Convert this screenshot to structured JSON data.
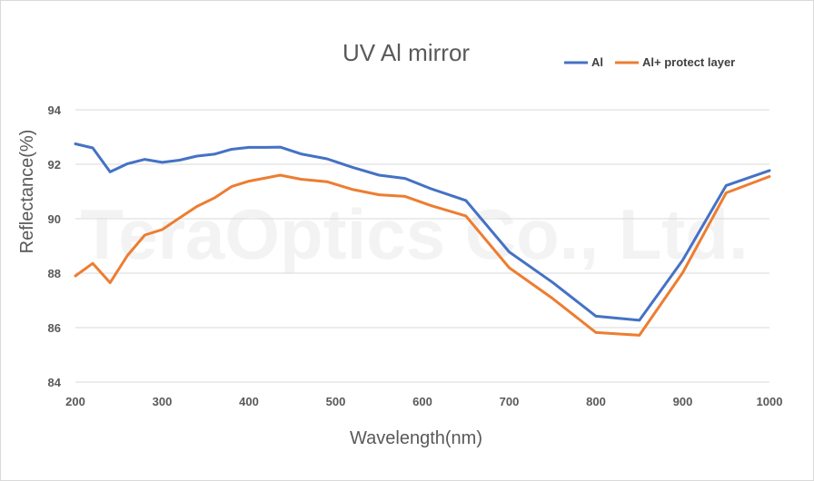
{
  "chart_data": {
    "type": "line",
    "title": "UV Al mirror",
    "xlabel": "Wavelength(nm)",
    "ylabel": "Reflectance(%)",
    "xlim": [
      200,
      1000
    ],
    "ylim": [
      84,
      94
    ],
    "xticks": [
      200,
      300,
      400,
      500,
      600,
      700,
      800,
      900,
      1000
    ],
    "yticks": [
      84,
      86,
      88,
      90,
      92,
      94
    ],
    "grid": true,
    "legend_position": "top-right",
    "watermark": "TeraOptics Co., Ltd.",
    "series": [
      {
        "name": "Al",
        "color": "#4472c4",
        "x": [
          200,
          220,
          240,
          260,
          280,
          300,
          320,
          340,
          360,
          380,
          400,
          420,
          436,
          460,
          490,
          520,
          550,
          580,
          610,
          650,
          700,
          750,
          800,
          850,
          900,
          950,
          1000
        ],
        "y": [
          92.75,
          92.6,
          91.72,
          92.02,
          92.18,
          92.07,
          92.15,
          92.3,
          92.37,
          92.55,
          92.62,
          92.62,
          92.63,
          92.38,
          92.2,
          91.88,
          91.6,
          91.48,
          91.1,
          90.67,
          88.78,
          87.66,
          86.42,
          86.27,
          88.48,
          91.22,
          91.77
        ]
      },
      {
        "name": "Al+ protect layer",
        "color": "#ed7d31",
        "x": [
          200,
          220,
          240,
          260,
          280,
          300,
          320,
          340,
          360,
          380,
          400,
          420,
          436,
          460,
          490,
          520,
          550,
          580,
          610,
          650,
          700,
          750,
          800,
          850,
          900,
          950,
          1000
        ],
        "y": [
          87.9,
          88.36,
          87.65,
          88.65,
          89.4,
          89.6,
          90.03,
          90.45,
          90.76,
          91.18,
          91.38,
          91.5,
          91.6,
          91.45,
          91.36,
          91.07,
          90.88,
          90.82,
          90.48,
          90.1,
          88.2,
          87.07,
          85.82,
          85.72,
          88.02,
          90.95,
          91.55
        ]
      }
    ]
  }
}
